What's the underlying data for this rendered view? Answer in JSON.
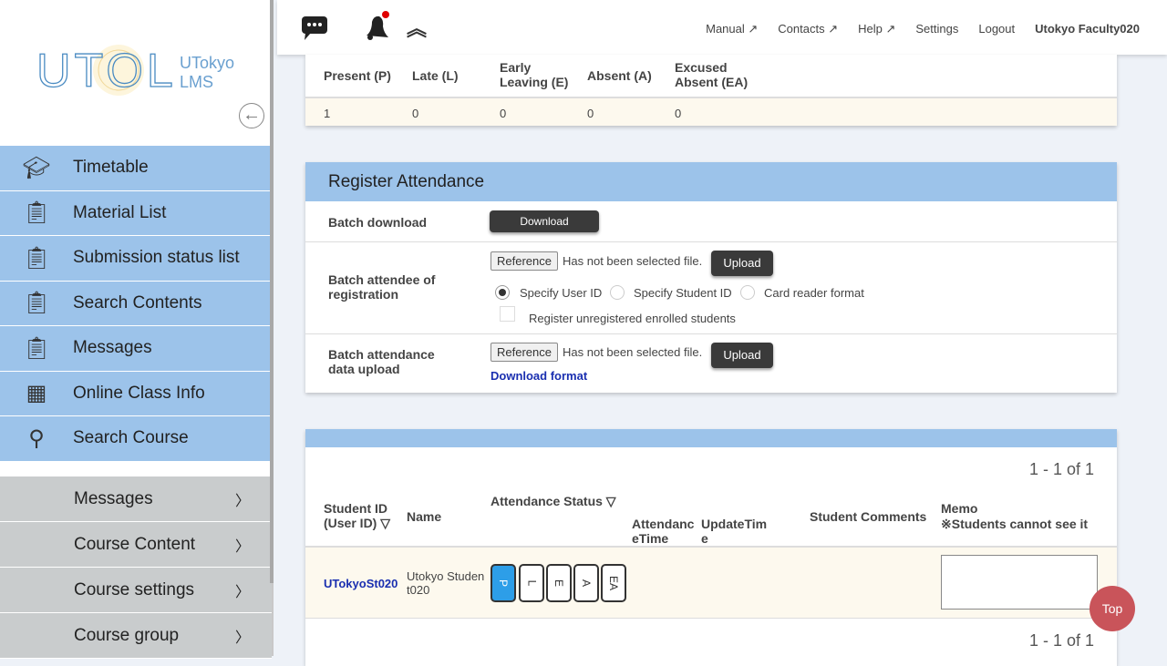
{
  "logo": {
    "main": "UTOL",
    "sub1": "UTokyo",
    "sub2": "LMS"
  },
  "sidebar": {
    "items": [
      {
        "label": "Timetable",
        "icon": "graduation-cap-icon"
      },
      {
        "label": "Material List",
        "icon": "clipboard-icon"
      },
      {
        "label": "Submission status list",
        "icon": "clipboard-icon"
      },
      {
        "label": "Search Contents",
        "icon": "clipboard-icon"
      },
      {
        "label": "Messages",
        "icon": "clipboard-icon"
      },
      {
        "label": "Online Class Info",
        "icon": "grid-icon"
      },
      {
        "label": "Search Course",
        "icon": "search-icon"
      }
    ],
    "sub_items": [
      {
        "label": "Messages"
      },
      {
        "label": "Course Content"
      },
      {
        "label": "Course settings"
      },
      {
        "label": "Course group"
      }
    ]
  },
  "topbar": {
    "links": [
      "Manual",
      "Contacts",
      "Help",
      "Settings",
      "Logout"
    ],
    "user": "Utokyo Faculty020",
    "notification_color": "#e00000"
  },
  "summary": {
    "headers": [
      "Present (P)",
      "Late (L)",
      "Early Leaving (E)",
      "Absent (A)",
      "Excused Absent (EA)"
    ],
    "values": [
      "1",
      "0",
      "0",
      "0",
      "0"
    ]
  },
  "register": {
    "title": "Register Attendance",
    "batch_download": "Batch download",
    "download": "Download",
    "batch_attendee": "Batch attendee of registration",
    "reference": "Reference",
    "no_file": "Has not been selected file.",
    "upload": "Upload",
    "radios": [
      "Specify User ID",
      "Specify Student ID",
      "Card reader format"
    ],
    "selected_radio": 0,
    "checkbox": "Register unregistered enrolled students",
    "batch_upload": "Batch attendance data upload",
    "download_format": "Download format"
  },
  "list": {
    "pagination": "1 - 1 of 1",
    "headers": {
      "student_id": "Student ID (User ID) ▽",
      "name": "Name",
      "status": "Attendance Status ▽",
      "att_time": "AttendanceTime",
      "update_time": "UpdateTime",
      "comments": "Student Comments",
      "memo": "Memo",
      "memo_note": "※Students cannot see it"
    },
    "rows": [
      {
        "student_id": "UTokyoSt020",
        "name": "Utokyo Student020",
        "status": "P",
        "status_options": [
          "P",
          "L",
          "E",
          "A",
          "EA"
        ],
        "memo": ""
      }
    ],
    "accent": "#2d9ee8"
  },
  "top_button": "Top"
}
